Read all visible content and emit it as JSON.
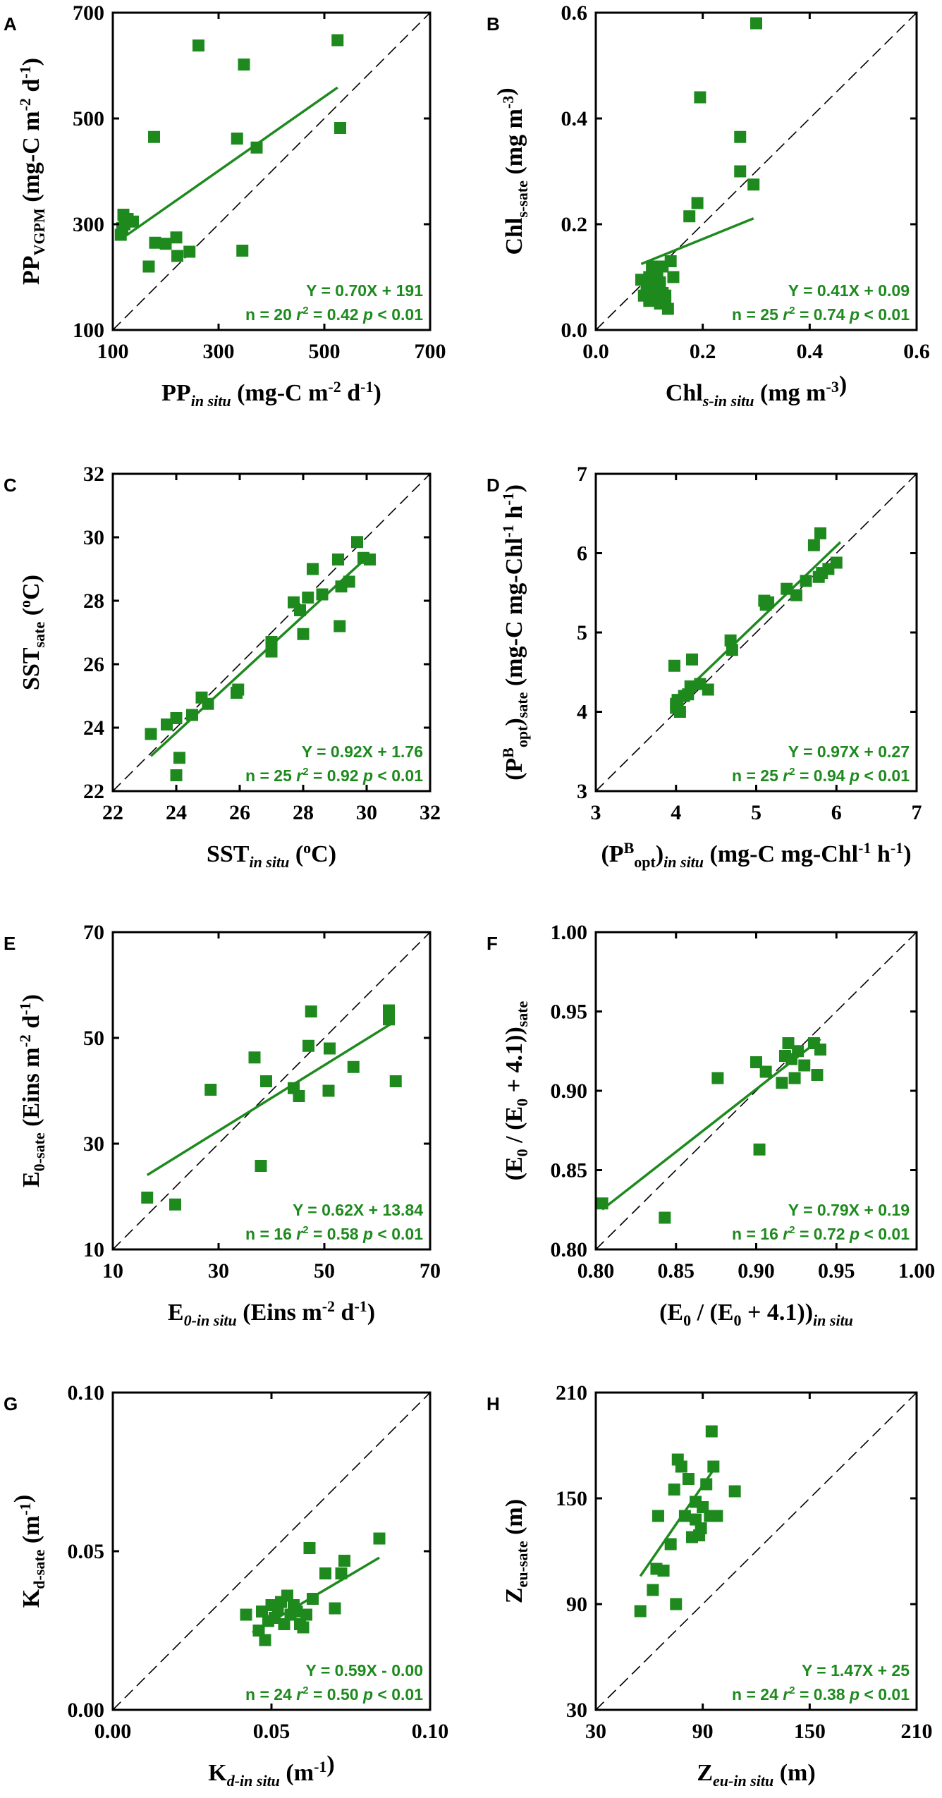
{
  "figure": {
    "panels": [
      {
        "id": "A",
        "xlim": [
          100,
          700
        ],
        "ylim": [
          100,
          700
        ],
        "xticks": [
          100,
          300,
          500,
          700
        ],
        "yticks": [
          100,
          300,
          500,
          700
        ],
        "tick_decimals": 0,
        "xlabel": {
          "base": "PP",
          "sub": "in situ",
          "italic_sub": true,
          "rest": " (mg-C m",
          "sup1": "-2",
          "mid": " d",
          "sup2": "-1",
          "end": ")"
        },
        "ylabel": {
          "base": "PP",
          "sub": "VGPM",
          "italic_sub": false,
          "rest": " (mg-C m",
          "sup1": "-2",
          "mid": " d",
          "sup2": "-1",
          "end": ")"
        },
        "eq": "Y = 0.70X + 191",
        "n": "n = 20",
        "r2_value": " = 0.42",
        "p": "p < 0.01"
      },
      {
        "id": "B",
        "xlim": [
          0,
          0.6
        ],
        "ylim": [
          0,
          0.6
        ],
        "xticks": [
          0,
          0.2,
          0.4,
          0.6
        ],
        "yticks": [
          0,
          0.2,
          0.4,
          0.6
        ],
        "tick_decimals": 1,
        "xlabel": {
          "base": "Chl",
          "sub": "s-in situ",
          "italic_sub": true,
          "rest": " (mg m",
          "sup1": "-3",
          "mid": "",
          "sup2": "",
          "end": ")"
        },
        "ylabel": {
          "base": "Chl",
          "sub": "s-sate",
          "italic_sub": false,
          "rest": " (mg m",
          "sup1": "-3",
          "mid": "",
          "sup2": "",
          "end": ")"
        },
        "eq": "Y = 0.41X + 0.09",
        "n": "n = 25",
        "r2_value": " = 0.74",
        "p": "p < 0.01"
      },
      {
        "id": "C",
        "xlim": [
          22,
          32
        ],
        "ylim": [
          22,
          32
        ],
        "xticks": [
          22,
          24,
          26,
          28,
          30,
          32
        ],
        "yticks": [
          22,
          24,
          26,
          28,
          30,
          32
        ],
        "tick_decimals": 0,
        "xlabel": {
          "base": "SST",
          "sub": "in situ",
          "italic_sub": true,
          "rest": " (",
          "sup1": "o",
          "mid": "C",
          "sup2": "",
          "end": ")"
        },
        "ylabel": {
          "base": "SST",
          "sub": "sate",
          "italic_sub": false,
          "rest": " (",
          "sup1": "o",
          "mid": "C",
          "sup2": "",
          "end": ")"
        },
        "eq": "Y = 0.92X + 1.76",
        "n": "n = 25",
        "r2_value": " = 0.92",
        "p": "p < 0.01"
      },
      {
        "id": "D",
        "xlim": [
          3,
          7
        ],
        "ylim": [
          3,
          7
        ],
        "xticks": [
          3,
          4,
          5,
          6,
          7
        ],
        "yticks": [
          3,
          4,
          5,
          6,
          7
        ],
        "tick_decimals": 0,
        "xlabel": {
          "base": "(P",
          "sup0": "B",
          "sub0": "opt",
          "close": ")",
          "sub": "in situ",
          "italic_sub": true,
          "rest": " (mg-C mg-Chl",
          "sup1": "-1",
          "mid": " h",
          "sup2": "-1",
          "end": ")"
        },
        "ylabel": {
          "base": "(P",
          "sup0": "B",
          "sub0": "opt",
          "close": ")",
          "sub": "sate",
          "italic_sub": false,
          "rest": " (mg-C mg-Chl",
          "sup1": "-1",
          "mid": " h",
          "sup2": "-1",
          "end": ")"
        },
        "eq": "Y = 0.97X + 0.27",
        "n": "n = 25",
        "r2_value": " = 0.94",
        "p": "p < 0.01"
      },
      {
        "id": "E",
        "xlim": [
          10,
          70
        ],
        "ylim": [
          10,
          70
        ],
        "xticks": [
          10,
          30,
          50,
          70
        ],
        "yticks": [
          10,
          30,
          50,
          70
        ],
        "tick_decimals": 0,
        "xlabel": {
          "base": "E",
          "sub": "0-in situ",
          "italic_sub": true,
          "rest": " (Eins m",
          "sup1": "-2",
          "mid": " d",
          "sup2": "-1",
          "end": ")"
        },
        "ylabel": {
          "base": "E",
          "sub": "0-sate",
          "italic_sub": false,
          "rest": " (Eins m",
          "sup1": "-2",
          "mid": " d",
          "sup2": "-1",
          "end": ")"
        },
        "eq": "Y = 0.62X + 13.84",
        "n": "n = 16",
        "r2_value": " = 0.58",
        "p": "p < 0.01"
      },
      {
        "id": "F",
        "xlim": [
          0.8,
          1.0
        ],
        "ylim": [
          0.8,
          1.0
        ],
        "xticks": [
          0.8,
          0.85,
          0.9,
          0.95,
          1.0
        ],
        "yticks": [
          0.8,
          0.85,
          0.9,
          0.95,
          1.0
        ],
        "tick_decimals": 2,
        "xlabel": {
          "base": "(E",
          "sub0b": "0",
          "middle": " / (E",
          "sub0c": "0",
          "plus": " + 4.1))",
          "sub": "in situ",
          "italic_sub": true
        },
        "ylabel": {
          "base": "(E",
          "sub0b": "0",
          "middle": " / (E",
          "sub0c": "0",
          "plus": " + 4.1))",
          "sub": "sate",
          "italic_sub": false
        },
        "eq": "Y = 0.79X + 0.19",
        "n": "n = 16",
        "r2_value": " = 0.72",
        "p": "p < 0.01"
      },
      {
        "id": "G",
        "xlim": [
          0,
          0.1
        ],
        "ylim": [
          0,
          0.1
        ],
        "xticks": [
          0,
          0.05,
          0.1
        ],
        "yticks": [
          0,
          0.05,
          0.1
        ],
        "tick_decimals": 2,
        "xlabel": {
          "base": "K",
          "sub": "d-in situ",
          "italic_sub": true,
          "rest": " (m",
          "sup1": "-1",
          "mid": "",
          "sup2": "",
          "end": ")"
        },
        "ylabel": {
          "base": "K",
          "sub": "d-sate",
          "italic_sub": false,
          "rest": " (m",
          "sup1": "-1",
          "mid": "",
          "sup2": "",
          "end": ")"
        },
        "eq": "Y = 0.59X - 0.00",
        "n": "n = 24",
        "r2_value": " = 0.50",
        "p": "p < 0.01"
      },
      {
        "id": "H",
        "xlim": [
          30,
          210
        ],
        "ylim": [
          30,
          210
        ],
        "xticks": [
          30,
          90,
          150,
          210
        ],
        "yticks": [
          30,
          90,
          150,
          210
        ],
        "tick_decimals": 0,
        "xlabel": {
          "base": "Z",
          "sub": "eu-in situ",
          "italic_sub": true,
          "rest": " (m)",
          "sup1": "",
          "mid": "",
          "sup2": "",
          "end": ""
        },
        "ylabel": {
          "base": "Z",
          "sub": "eu-sate",
          "italic_sub": false,
          "rest": " (m)",
          "sup1": "",
          "mid": "",
          "sup2": "",
          "end": ""
        },
        "eq": "Y = 1.47X + 25",
        "n": "n = 24",
        "r2_value": " = 0.38",
        "p": "p < 0.01"
      }
    ],
    "r2_symbol": "r",
    "r2_sup": "2",
    "colors": {
      "points": "#1e8a1e",
      "fit": "#1e8a1e",
      "stats": "#1e8a1e",
      "axes": "#000000"
    }
  },
  "chart_data": [
    {
      "type": "scatter",
      "panel": "A",
      "title": "",
      "xlabel": "PP in situ (mg-C m-2 d-1)",
      "ylabel": "PP VGPM (mg-C m-2 d-1)",
      "xlim": [
        100,
        700
      ],
      "ylim": [
        100,
        700
      ],
      "x": [
        115,
        118,
        120,
        122,
        128,
        138,
        168,
        178,
        180,
        200,
        220,
        222,
        245,
        262,
        335,
        345,
        348,
        372,
        525,
        530
      ],
      "y": [
        280,
        293,
        318,
        300,
        310,
        305,
        220,
        465,
        265,
        263,
        275,
        240,
        248,
        638,
        462,
        250,
        602,
        445,
        648,
        482
      ],
      "fit": {
        "slope": 0.7,
        "intercept": 191,
        "x_range": [
          115,
          525
        ]
      },
      "one_to_one": true
    },
    {
      "type": "scatter",
      "panel": "B",
      "title": "",
      "xlabel": "Chl s-in situ (mg m-3)",
      "ylabel": "Chl s-sate (mg m-3)",
      "xlim": [
        0,
        0.6
      ],
      "ylim": [
        0,
        0.6
      ],
      "x": [
        0.085,
        0.09,
        0.095,
        0.1,
        0.1,
        0.105,
        0.11,
        0.11,
        0.115,
        0.12,
        0.12,
        0.125,
        0.125,
        0.13,
        0.13,
        0.135,
        0.14,
        0.145,
        0.175,
        0.19,
        0.195,
        0.27,
        0.27,
        0.295,
        0.3
      ],
      "y": [
        0.095,
        0.065,
        0.08,
        0.1,
        0.055,
        0.12,
        0.07,
        0.085,
        0.11,
        0.09,
        0.05,
        0.07,
        0.12,
        0.055,
        0.065,
        0.04,
        0.13,
        0.1,
        0.215,
        0.24,
        0.44,
        0.365,
        0.3,
        0.275,
        0.58
      ],
      "fit": {
        "slope": 0.41,
        "intercept": 0.09,
        "x_range": [
          0.085,
          0.295
        ]
      },
      "one_to_one": true
    },
    {
      "type": "scatter",
      "panel": "C",
      "title": "",
      "xlabel": "SST in situ (oC)",
      "ylabel": "SST sate (oC)",
      "xlim": [
        22,
        32
      ],
      "ylim": [
        22,
        32
      ],
      "x": [
        23.2,
        23.7,
        24.0,
        24.0,
        24.1,
        24.5,
        24.8,
        25.0,
        25.9,
        25.95,
        27.0,
        27.0,
        27.7,
        27.9,
        28.0,
        28.15,
        28.3,
        28.6,
        29.1,
        29.15,
        29.2,
        29.45,
        29.7,
        29.9,
        30.1
      ],
      "y": [
        23.8,
        24.1,
        22.5,
        24.3,
        23.05,
        24.4,
        24.95,
        24.75,
        25.1,
        25.2,
        26.4,
        26.7,
        27.95,
        27.7,
        26.95,
        28.1,
        29.0,
        28.2,
        29.3,
        27.2,
        28.45,
        28.6,
        29.85,
        29.35,
        29.3
      ],
      "fit": {
        "slope": 0.92,
        "intercept": 1.76,
        "x_range": [
          23.2,
          30.1
        ]
      },
      "one_to_one": true
    },
    {
      "type": "scatter",
      "panel": "D",
      "title": "",
      "xlabel": "(PB opt) in situ (mg-C mg-Chl-1 h-1)",
      "ylabel": "(PB opt) sate (mg-C mg-Chl-1 h-1)",
      "xlim": [
        3,
        7
      ],
      "ylim": [
        3,
        7
      ],
      "x": [
        3.98,
        4.0,
        4.02,
        4.05,
        4.15,
        4.2,
        4.3,
        4.4,
        4.68,
        4.7,
        5.1,
        5.12,
        5.38,
        5.5,
        5.62,
        5.72,
        5.78,
        5.8,
        5.82,
        5.9,
        6.0,
        4.0,
        4.1,
        4.18,
        5.15
      ],
      "y": [
        4.58,
        4.05,
        4.15,
        4.0,
        4.22,
        4.66,
        4.35,
        4.28,
        4.9,
        4.78,
        5.4,
        5.35,
        5.55,
        5.47,
        5.65,
        6.1,
        5.7,
        6.25,
        5.75,
        5.8,
        5.88,
        4.1,
        4.2,
        4.32,
        5.38
      ],
      "fit": {
        "slope": 0.97,
        "intercept": 0.27,
        "x_range": [
          3.98,
          6.05
        ]
      },
      "one_to_one": true
    },
    {
      "type": "scatter",
      "panel": "E",
      "title": "",
      "xlabel": "E 0-in situ (Eins m-2 d-1)",
      "ylabel": "E 0-sate (Eins m-2 d-1)",
      "xlim": [
        10,
        70
      ],
      "ylim": [
        10,
        70
      ],
      "x": [
        16.5,
        21.8,
        28.5,
        36.8,
        38.0,
        39.0,
        44.2,
        45.2,
        47.0,
        47.5,
        50.8,
        51.0,
        55.5,
        62.2,
        62.2,
        63.5
      ],
      "y": [
        19.8,
        18.5,
        40.2,
        46.3,
        25.8,
        41.8,
        40.5,
        39.0,
        48.5,
        55.0,
        40.0,
        48.0,
        44.5,
        53.5,
        55.2,
        41.8
      ],
      "fit": {
        "slope": 0.62,
        "intercept": 13.84,
        "x_range": [
          16.5,
          62.5
        ]
      },
      "one_to_one": true
    },
    {
      "type": "scatter",
      "panel": "F",
      "title": "",
      "xlabel": "(E0 / (E0 + 4.1)) in situ",
      "ylabel": "(E0 / (E0 + 4.1)) sate",
      "xlim": [
        0.8,
        1.0
      ],
      "ylim": [
        0.8,
        1.0
      ],
      "x": [
        0.804,
        0.843,
        0.876,
        0.9,
        0.902,
        0.906,
        0.916,
        0.918,
        0.92,
        0.922,
        0.924,
        0.926,
        0.93,
        0.936,
        0.938,
        0.94
      ],
      "y": [
        0.829,
        0.82,
        0.908,
        0.918,
        0.863,
        0.912,
        0.905,
        0.922,
        0.93,
        0.92,
        0.908,
        0.925,
        0.916,
        0.93,
        0.91,
        0.926
      ],
      "fit": {
        "slope": 0.79,
        "intercept": 0.19,
        "x_range": [
          0.804,
          0.94
        ]
      },
      "one_to_one": true
    },
    {
      "type": "scatter",
      "panel": "G",
      "title": "",
      "xlabel": "K d-in situ (m-1)",
      "ylabel": "K d-sate (m-1)",
      "xlim": [
        0,
        0.1
      ],
      "ylim": [
        0,
        0.1
      ],
      "x": [
        0.042,
        0.046,
        0.047,
        0.048,
        0.049,
        0.05,
        0.051,
        0.052,
        0.053,
        0.054,
        0.055,
        0.056,
        0.057,
        0.058,
        0.059,
        0.06,
        0.061,
        0.062,
        0.063,
        0.067,
        0.07,
        0.072,
        0.073,
        0.084
      ],
      "y": [
        0.03,
        0.025,
        0.031,
        0.022,
        0.028,
        0.033,
        0.029,
        0.032,
        0.034,
        0.027,
        0.036,
        0.03,
        0.033,
        0.031,
        0.027,
        0.026,
        0.03,
        0.051,
        0.035,
        0.043,
        0.032,
        0.043,
        0.047,
        0.054
      ],
      "fit": {
        "slope": 0.59,
        "intercept": -0.0016,
        "x_range": [
          0.044,
          0.084
        ]
      },
      "one_to_one": true
    },
    {
      "type": "scatter",
      "panel": "H",
      "title": "",
      "xlabel": "Z eu-in situ (m)",
      "ylabel": "Z eu-sate (m)",
      "xlim": [
        30,
        210
      ],
      "ylim": [
        30,
        210
      ],
      "x": [
        55,
        62,
        64,
        65,
        68,
        72,
        74,
        75,
        76,
        78,
        80,
        82,
        84,
        86,
        86,
        88,
        89,
        90,
        92,
        94,
        95,
        96,
        98,
        108
      ],
      "y": [
        86,
        98,
        110,
        140,
        109,
        124,
        155,
        90,
        172,
        168,
        140,
        161,
        128,
        148,
        138,
        129,
        133,
        145,
        158,
        140,
        188,
        168,
        140,
        154
      ],
      "fit": {
        "slope": 1.47,
        "intercept": 25,
        "x_range": [
          55,
          98
        ]
      },
      "one_to_one": true
    }
  ]
}
